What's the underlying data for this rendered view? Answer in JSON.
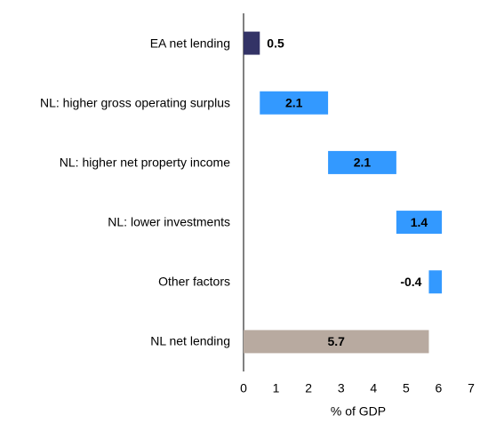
{
  "chart_data": {
    "type": "waterfall",
    "categories": [
      "EA net lending",
      "NL: higher gross operating surplus",
      "NL: higher net property income",
      "NL: lower investments",
      "Other factors",
      "NL net lending"
    ],
    "values": [
      0.5,
      2.1,
      2.1,
      1.4,
      -0.4,
      5.7
    ],
    "is_total": [
      false,
      false,
      false,
      false,
      false,
      true
    ],
    "colors": [
      "#333366",
      "#3399ff",
      "#3399ff",
      "#3399ff",
      "#3399ff",
      "#b8aaa0"
    ],
    "xlabel": "% of GDP",
    "xlim": [
      0,
      7
    ],
    "xticks": [
      0,
      1,
      2,
      3,
      4,
      5,
      6,
      7
    ]
  }
}
